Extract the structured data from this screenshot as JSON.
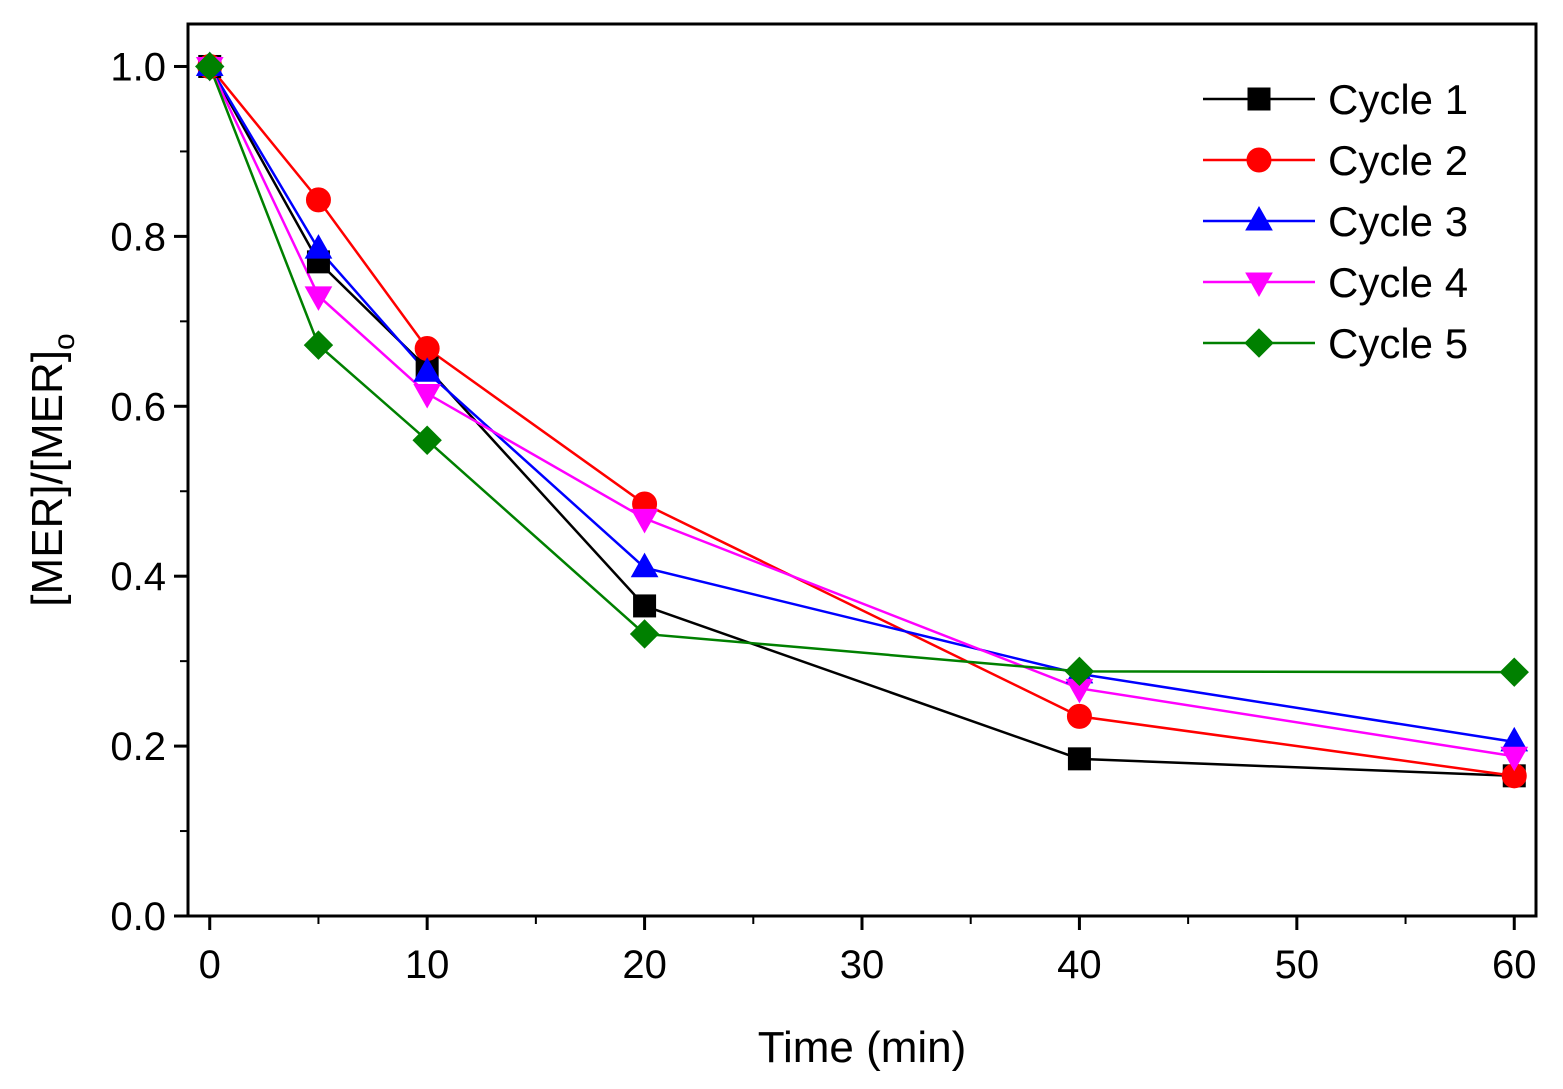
{
  "chart_data": {
    "type": "line",
    "title": "",
    "xlabel": "Time (min)",
    "ylabel_main": "[MER]/[MER]",
    "ylabel_sub": "o",
    "xlim": [
      -1,
      61
    ],
    "ylim": [
      0.0,
      1.05
    ],
    "x_ticks": [
      0,
      10,
      20,
      30,
      40,
      50,
      60
    ],
    "x_tick_labels": [
      "0",
      "10",
      "20",
      "30",
      "40",
      "50",
      "60"
    ],
    "y_ticks": [
      0.0,
      0.2,
      0.4,
      0.6,
      0.8,
      1.0
    ],
    "y_tick_labels": [
      "0.0",
      "0.2",
      "0.4",
      "0.6",
      "0.8",
      "1.0"
    ],
    "x": [
      0,
      5,
      10,
      20,
      40,
      60
    ],
    "grid": false,
    "legend_position": "top-right",
    "series": [
      {
        "name": "Cycle 1",
        "color": "#000000",
        "marker": "square",
        "values": [
          1.0,
          0.77,
          0.645,
          0.365,
          0.185,
          0.165
        ]
      },
      {
        "name": "Cycle 2",
        "color": "#ff0000",
        "marker": "circle",
        "values": [
          1.0,
          0.843,
          0.668,
          0.485,
          0.235,
          0.165
        ]
      },
      {
        "name": "Cycle 3",
        "color": "#0000ff",
        "marker": "triangle-up",
        "values": [
          1.0,
          0.785,
          0.64,
          0.41,
          0.285,
          0.205
        ]
      },
      {
        "name": "Cycle 4",
        "color": "#ff00ff",
        "marker": "triangle-down",
        "values": [
          1.0,
          0.73,
          0.615,
          0.468,
          0.268,
          0.188
        ]
      },
      {
        "name": "Cycle 5",
        "color": "#008000",
        "marker": "diamond",
        "values": [
          1.0,
          0.672,
          0.56,
          0.332,
          0.288,
          0.287
        ]
      }
    ]
  }
}
